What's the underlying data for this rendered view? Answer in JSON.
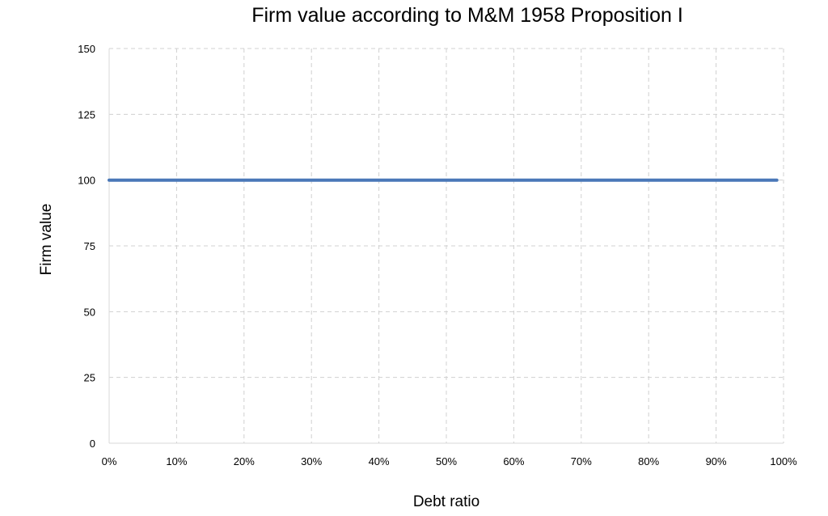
{
  "chart_data": {
    "type": "line",
    "title": "Firm value according to M&M 1958 Proposition I",
    "xlabel": "Debt ratio",
    "ylabel": "Firm value",
    "xlim": [
      0,
      100
    ],
    "ylim": [
      0,
      150
    ],
    "x_ticks": [
      "0%",
      "10%",
      "20%",
      "30%",
      "40%",
      "50%",
      "60%",
      "70%",
      "80%",
      "90%",
      "100%"
    ],
    "y_ticks": [
      "0",
      "25",
      "50",
      "75",
      "100",
      "125",
      "150"
    ],
    "grid": true,
    "legend": "none",
    "series": [
      {
        "color": "#4a78b8",
        "x": [
          0,
          10,
          20,
          30,
          40,
          50,
          60,
          70,
          80,
          90,
          99
        ],
        "y": [
          100,
          100,
          100,
          100,
          100,
          100,
          100,
          100,
          100,
          100,
          100
        ]
      }
    ]
  }
}
